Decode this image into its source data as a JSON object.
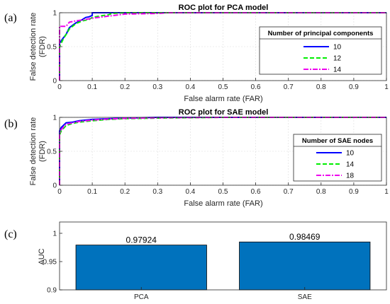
{
  "chart_data": [
    {
      "type": "line",
      "panel_label": "(a)",
      "title": "ROC plot for PCA model",
      "xlabel": "False alarm rate (FAR)",
      "ylabel_line1": "False detection rate",
      "ylabel_line2": "(FDR)",
      "xlim": [
        0,
        1
      ],
      "ylim": [
        0,
        1
      ],
      "xticks": [
        "0",
        "0.1",
        "0.2",
        "0.3",
        "0.4",
        "0.5",
        "0.6",
        "0.7",
        "0.8",
        "0.9",
        "1"
      ],
      "yticks": [
        "0",
        "0.5",
        "1"
      ],
      "legend_title": "Number of principal components",
      "legend_position": "right",
      "series": [
        {
          "name": "10",
          "color": "#0000ff",
          "dash": "solid",
          "x": [
            0,
            0,
            0.01,
            0.02,
            0.03,
            0.05,
            0.07,
            0.08,
            0.09,
            0.1,
            0.1,
            0.12,
            0.15,
            0.2,
            0.3,
            1.0
          ],
          "y": [
            0,
            0.55,
            0.62,
            0.68,
            0.78,
            0.85,
            0.9,
            0.93,
            0.94,
            0.96,
            1.0,
            1.0,
            1.0,
            1.0,
            1.0,
            1.0
          ]
        },
        {
          "name": "12",
          "color": "#00ee00",
          "dash": "dashed",
          "x": [
            0,
            0,
            0.01,
            0.02,
            0.03,
            0.05,
            0.07,
            0.09,
            0.1,
            0.12,
            0.15,
            0.16,
            0.2,
            0.3,
            1.0
          ],
          "y": [
            0,
            0.5,
            0.6,
            0.68,
            0.76,
            0.84,
            0.88,
            0.9,
            0.93,
            0.95,
            0.97,
            0.99,
            1.0,
            1.0,
            1.0
          ]
        },
        {
          "name": "14",
          "color": "#ee00ee",
          "dash": "dashdot",
          "x": [
            0,
            0,
            0.02,
            0.03,
            0.05,
            0.08,
            0.1,
            0.15,
            0.2,
            0.3,
            0.33,
            1.0
          ],
          "y": [
            0,
            0.8,
            0.8,
            0.86,
            0.88,
            0.9,
            0.92,
            0.95,
            0.98,
            0.99,
            1.0,
            1.0
          ]
        }
      ]
    },
    {
      "type": "line",
      "panel_label": "(b)",
      "title": "ROC plot for SAE model",
      "xlabel": "False alarm rate (FAR)",
      "ylabel_line1": "False detection rate",
      "ylabel_line2": "(FDR)",
      "xlim": [
        0,
        1
      ],
      "ylim": [
        0,
        1
      ],
      "xticks": [
        "0",
        "0.1",
        "0.2",
        "0.3",
        "0.4",
        "0.5",
        "0.6",
        "0.7",
        "0.8",
        "0.9",
        "1"
      ],
      "yticks": [
        "0",
        "0.5",
        "1"
      ],
      "legend_title": "Number of SAE nodes",
      "legend_position": "right",
      "series": [
        {
          "name": "10",
          "color": "#0000ff",
          "dash": "solid",
          "x": [
            0,
            0,
            0.005,
            0.02,
            0.04,
            0.06,
            0.1,
            0.15,
            0.2,
            0.3,
            0.5,
            1.0
          ],
          "y": [
            0,
            0.8,
            0.85,
            0.92,
            0.93,
            0.95,
            0.97,
            0.98,
            0.99,
            1.0,
            1.0,
            1.0
          ]
        },
        {
          "name": "14",
          "color": "#00ee00",
          "dash": "dashed",
          "x": [
            0,
            0,
            0.005,
            0.02,
            0.04,
            0.06,
            0.1,
            0.15,
            0.2,
            0.3,
            0.5,
            1.0
          ],
          "y": [
            0,
            0.74,
            0.8,
            0.88,
            0.91,
            0.93,
            0.95,
            0.97,
            0.98,
            0.99,
            1.0,
            1.0
          ]
        },
        {
          "name": "18",
          "color": "#ee00ee",
          "dash": "dashdot",
          "x": [
            0,
            0,
            0.005,
            0.02,
            0.04,
            0.06,
            0.1,
            0.15,
            0.2,
            0.3,
            0.5,
            1.0
          ],
          "y": [
            0,
            0.76,
            0.82,
            0.9,
            0.92,
            0.94,
            0.96,
            0.975,
            0.985,
            0.995,
            1.0,
            1.0
          ]
        }
      ]
    },
    {
      "type": "bar",
      "panel_label": "(c)",
      "ylabel": "AUC",
      "categories": [
        "PCA",
        "SAE"
      ],
      "values": [
        0.97924,
        0.98469
      ],
      "value_labels": [
        "0.97924",
        "0.98469"
      ],
      "ylim": [
        0.9,
        1.02
      ],
      "yticks": [
        "0.9",
        "0.95",
        "1"
      ],
      "bar_color": "#0072bd"
    }
  ]
}
